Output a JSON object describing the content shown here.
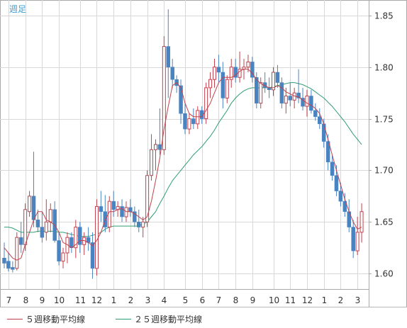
{
  "timeframe_label": "週足",
  "legend": [
    {
      "label": "５週移動平均線",
      "color": "#c0424d"
    },
    {
      "label": "２５週移動平均線",
      "color": "#2e9e70"
    }
  ],
  "colors": {
    "up": "#c0424d",
    "down": "#4a84c0",
    "grid": "#d8d8d8",
    "border": "#a8a8a8",
    "axis_text": "#333333"
  },
  "chart_data": {
    "type": "candlestick",
    "y_axis_position": "right",
    "ylim": [
      1.585,
      1.865
    ],
    "yticks": [
      "1.85",
      "1.80",
      "1.75",
      "1.70",
      "1.65",
      "1.60"
    ],
    "xticks": [
      {
        "label": "7",
        "index": 1
      },
      {
        "label": "8",
        "index": 5
      },
      {
        "label": "9",
        "index": 9
      },
      {
        "label": "10",
        "index": 13
      },
      {
        "label": "11",
        "index": 18
      },
      {
        "label": "12",
        "index": 22
      },
      {
        "label": "1",
        "index": 26
      },
      {
        "label": "2",
        "index": 30
      },
      {
        "label": "3",
        "index": 34
      },
      {
        "label": "4",
        "index": 38
      },
      {
        "label": "5",
        "index": 43
      },
      {
        "label": "6",
        "index": 47
      },
      {
        "label": "7",
        "index": 51
      },
      {
        "label": "8",
        "index": 55
      },
      {
        "label": "9",
        "index": 59
      },
      {
        "label": "10",
        "index": 64
      },
      {
        "label": "11",
        "index": 68
      },
      {
        "label": "12",
        "index": 72
      },
      {
        "label": "1",
        "index": 76
      },
      {
        "label": "2",
        "index": 80
      },
      {
        "label": "3",
        "index": 84
      }
    ],
    "ohlc": [
      [
        1.615,
        1.63,
        1.605,
        1.61
      ],
      [
        1.612,
        1.62,
        1.602,
        1.605
      ],
      [
        1.606,
        1.612,
        1.601,
        1.604
      ],
      [
        1.605,
        1.64,
        1.603,
        1.635
      ],
      [
        1.635,
        1.65,
        1.62,
        1.628
      ],
      [
        1.628,
        1.668,
        1.622,
        1.662
      ],
      [
        1.66,
        1.68,
        1.655,
        1.675
      ],
      [
        1.675,
        1.718,
        1.645,
        1.652
      ],
      [
        1.652,
        1.662,
        1.64,
        1.645
      ],
      [
        1.645,
        1.66,
        1.63,
        1.635
      ],
      [
        1.64,
        1.672,
        1.632,
        1.65
      ],
      [
        1.65,
        1.668,
        1.64,
        1.662
      ],
      [
        1.662,
        1.67,
        1.63,
        1.632
      ],
      [
        1.632,
        1.64,
        1.608,
        1.612
      ],
      [
        1.612,
        1.625,
        1.605,
        1.62
      ],
      [
        1.62,
        1.64,
        1.61,
        1.635
      ],
      [
        1.635,
        1.64,
        1.62,
        1.625
      ],
      [
        1.625,
        1.652,
        1.615,
        1.645
      ],
      [
        1.645,
        1.65,
        1.62,
        1.628
      ],
      [
        1.628,
        1.64,
        1.618,
        1.635
      ],
      [
        1.635,
        1.645,
        1.622,
        1.63
      ],
      [
        1.63,
        1.64,
        1.595,
        1.605
      ],
      [
        1.605,
        1.672,
        1.598,
        1.665
      ],
      [
        1.665,
        1.68,
        1.65,
        1.66
      ],
      [
        1.66,
        1.676,
        1.64,
        1.645
      ],
      [
        1.645,
        1.675,
        1.64,
        1.67
      ],
      [
        1.67,
        1.68,
        1.655,
        1.662
      ],
      [
        1.662,
        1.67,
        1.655,
        1.665
      ],
      [
        1.665,
        1.672,
        1.65,
        1.655
      ],
      [
        1.655,
        1.67,
        1.65,
        1.664
      ],
      [
        1.664,
        1.672,
        1.655,
        1.66
      ],
      [
        1.66,
        1.665,
        1.645,
        1.65
      ],
      [
        1.65,
        1.662,
        1.64,
        1.645
      ],
      [
        1.645,
        1.655,
        1.635,
        1.65
      ],
      [
        1.65,
        1.7,
        1.645,
        1.695
      ],
      [
        1.695,
        1.735,
        1.69,
        1.72
      ],
      [
        1.72,
        1.73,
        1.7,
        1.725
      ],
      [
        1.725,
        1.76,
        1.715,
        1.72
      ],
      [
        1.72,
        1.83,
        1.715,
        1.82
      ],
      [
        1.82,
        1.856,
        1.77,
        1.8
      ],
      [
        1.8,
        1.808,
        1.78,
        1.788
      ],
      [
        1.788,
        1.792,
        1.775,
        1.782
      ],
      [
        1.782,
        1.788,
        1.745,
        1.755
      ],
      [
        1.755,
        1.765,
        1.735,
        1.74
      ],
      [
        1.74,
        1.755,
        1.735,
        1.75
      ],
      [
        1.75,
        1.76,
        1.74,
        1.745
      ],
      [
        1.745,
        1.762,
        1.74,
        1.758
      ],
      [
        1.758,
        1.762,
        1.745,
        1.75
      ],
      [
        1.75,
        1.785,
        1.745,
        1.78
      ],
      [
        1.78,
        1.795,
        1.77,
        1.788
      ],
      [
        1.788,
        1.808,
        1.78,
        1.8
      ],
      [
        1.8,
        1.812,
        1.785,
        1.795
      ],
      [
        1.795,
        1.805,
        1.76,
        1.77
      ],
      [
        1.77,
        1.792,
        1.765,
        1.788
      ],
      [
        1.788,
        1.808,
        1.78,
        1.8
      ],
      [
        1.8,
        1.808,
        1.785,
        1.79
      ],
      [
        1.79,
        1.815,
        1.785,
        1.798
      ],
      [
        1.798,
        1.808,
        1.788,
        1.8
      ],
      [
        1.8,
        1.812,
        1.795,
        1.805
      ],
      [
        1.805,
        1.81,
        1.785,
        1.79
      ],
      [
        1.79,
        1.795,
        1.76,
        1.765
      ],
      [
        1.765,
        1.79,
        1.76,
        1.785
      ],
      [
        1.785,
        1.795,
        1.775,
        1.78
      ],
      [
        1.78,
        1.79,
        1.77,
        1.778
      ],
      [
        1.778,
        1.8,
        1.772,
        1.795
      ],
      [
        1.795,
        1.802,
        1.78,
        1.785
      ],
      [
        1.785,
        1.79,
        1.76,
        1.765
      ],
      [
        1.765,
        1.78,
        1.755,
        1.772
      ],
      [
        1.772,
        1.785,
        1.762,
        1.768
      ],
      [
        1.768,
        1.78,
        1.76,
        1.775
      ],
      [
        1.775,
        1.798,
        1.765,
        1.77
      ],
      [
        1.77,
        1.78,
        1.758,
        1.762
      ],
      [
        1.762,
        1.778,
        1.752,
        1.772
      ],
      [
        1.772,
        1.778,
        1.755,
        1.758
      ],
      [
        1.758,
        1.765,
        1.748,
        1.752
      ],
      [
        1.752,
        1.76,
        1.74,
        1.745
      ],
      [
        1.745,
        1.75,
        1.722,
        1.728
      ],
      [
        1.728,
        1.735,
        1.7,
        1.708
      ],
      [
        1.708,
        1.715,
        1.69,
        1.695
      ],
      [
        1.695,
        1.705,
        1.675,
        1.68
      ],
      [
        1.68,
        1.688,
        1.665,
        1.67
      ],
      [
        1.67,
        1.678,
        1.655,
        1.66
      ],
      [
        1.66,
        1.672,
        1.64,
        1.645
      ],
      [
        1.645,
        1.652,
        1.615,
        1.622
      ],
      [
        1.622,
        1.655,
        1.618,
        1.64
      ],
      [
        1.64,
        1.668,
        1.63,
        1.66
      ]
    ],
    "ma5": [
      1.625,
      1.62,
      1.615,
      1.613,
      1.615,
      1.628,
      1.64,
      1.652,
      1.66,
      1.66,
      1.652,
      1.65,
      1.647,
      1.64,
      1.63,
      1.628,
      1.625,
      1.628,
      1.632,
      1.632,
      1.63,
      1.627,
      1.632,
      1.64,
      1.652,
      1.66,
      1.66,
      1.662,
      1.663,
      1.66,
      1.66,
      1.658,
      1.655,
      1.652,
      1.655,
      1.67,
      1.69,
      1.712,
      1.74,
      1.762,
      1.782,
      1.785,
      1.78,
      1.765,
      1.755,
      1.752,
      1.752,
      1.752,
      1.758,
      1.765,
      1.775,
      1.785,
      1.79,
      1.79,
      1.79,
      1.792,
      1.796,
      1.798,
      1.798,
      1.794,
      1.788,
      1.784,
      1.782,
      1.78,
      1.78,
      1.782,
      1.78,
      1.776,
      1.774,
      1.772,
      1.771,
      1.768,
      1.765,
      1.763,
      1.76,
      1.755,
      1.745,
      1.73,
      1.715,
      1.7,
      1.686,
      1.672,
      1.66,
      1.65,
      1.643,
      1.645
    ],
    "ma25": [
      1.645,
      1.645,
      1.644,
      1.642,
      1.64,
      1.64,
      1.64,
      1.64,
      1.641,
      1.641,
      1.641,
      1.641,
      1.641,
      1.64,
      1.64,
      1.639,
      1.638,
      1.637,
      1.636,
      1.636,
      1.636,
      1.637,
      1.638,
      1.64,
      1.643,
      1.645,
      1.646,
      1.646,
      1.646,
      1.646,
      1.646,
      1.646,
      1.646,
      1.648,
      1.65,
      1.655,
      1.66,
      1.668,
      1.675,
      1.683,
      1.69,
      1.695,
      1.7,
      1.705,
      1.71,
      1.715,
      1.719,
      1.723,
      1.728,
      1.733,
      1.739,
      1.746,
      1.752,
      1.758,
      1.765,
      1.77,
      1.774,
      1.777,
      1.779,
      1.78,
      1.78,
      1.78,
      1.78,
      1.78,
      1.781,
      1.782,
      1.783,
      1.784,
      1.785,
      1.785,
      1.784,
      1.783,
      1.781,
      1.779,
      1.776,
      1.773,
      1.77,
      1.766,
      1.762,
      1.757,
      1.752,
      1.747,
      1.741,
      1.735,
      1.73,
      1.725
    ]
  }
}
